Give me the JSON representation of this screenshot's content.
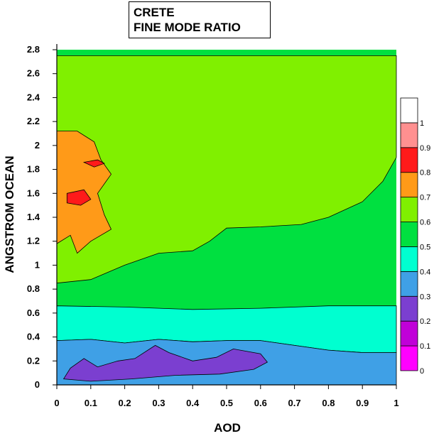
{
  "chart_data": {
    "type": "heatmap",
    "title": [
      "CRETE",
      "FINE MODE RATIO"
    ],
    "xlabel": "AOD",
    "ylabel": "ANGSTROM OCEAN",
    "xlim": [
      0,
      1
    ],
    "ylim": [
      0,
      2.8
    ],
    "x_ticks": [
      "0",
      "0.1",
      "0.2",
      "0.3",
      "0.4",
      "0.5",
      "0.6",
      "0.7",
      "0.8",
      "0.9",
      "1"
    ],
    "y_ticks": [
      "0",
      "0.2",
      "0.4",
      "0.6",
      "0.8",
      "1",
      "1.2",
      "1.4",
      "1.6",
      "1.8",
      "2",
      "2.2",
      "2.4",
      "2.6",
      "2.8"
    ],
    "colorbar": {
      "ticks": [
        "0",
        "0.1",
        "0.2",
        "0.3",
        "0.4",
        "0.5",
        "0.6",
        "0.7",
        "0.8",
        "0.9",
        "1"
      ],
      "levels": [
        {
          "range": [
            0.0,
            0.1
          ],
          "color": "#ff00ff"
        },
        {
          "range": [
            0.1,
            0.2
          ],
          "color": "#c000d8"
        },
        {
          "range": [
            0.2,
            0.3
          ],
          "color": "#7b3fd0"
        },
        {
          "range": [
            0.3,
            0.4
          ],
          "color": "#3fa0e6"
        },
        {
          "range": [
            0.4,
            0.5
          ],
          "color": "#00ffd0"
        },
        {
          "range": [
            0.5,
            0.6
          ],
          "color": "#00e040"
        },
        {
          "range": [
            0.6,
            0.7
          ],
          "color": "#80f000"
        },
        {
          "range": [
            0.7,
            0.8
          ],
          "color": "#ff9a18"
        },
        {
          "range": [
            0.8,
            0.9
          ],
          "color": "#ff1a1a"
        },
        {
          "range": [
            0.9,
            1.0
          ],
          "color": "#ff9090"
        },
        {
          "range": [
            1.0,
            1.1
          ],
          "color": "#ffffff"
        }
      ]
    },
    "regions": [
      {
        "name": "background",
        "level": 0.55,
        "color": "#00e040"
      },
      {
        "name": "upper-large-zone",
        "level": 0.65,
        "color": "#80f000",
        "outline": [
          [
            0.0,
            2.75
          ],
          [
            1.0,
            2.75
          ],
          [
            1.0,
            1.9
          ],
          [
            0.96,
            1.7
          ],
          [
            0.9,
            1.53
          ],
          [
            0.8,
            1.4
          ],
          [
            0.72,
            1.34
          ],
          [
            0.6,
            1.32
          ],
          [
            0.5,
            1.31
          ],
          [
            0.45,
            1.2
          ],
          [
            0.4,
            1.12
          ],
          [
            0.3,
            1.1
          ],
          [
            0.2,
            1.0
          ],
          [
            0.1,
            0.88
          ],
          [
            0.0,
            0.85
          ]
        ]
      },
      {
        "name": "mid-cyan-band",
        "level": 0.45,
        "color": "#00ffd0",
        "outline": [
          [
            0.0,
            0.66
          ],
          [
            0.2,
            0.65
          ],
          [
            0.4,
            0.63
          ],
          [
            0.6,
            0.64
          ],
          [
            0.8,
            0.66
          ],
          [
            1.0,
            0.66
          ],
          [
            1.0,
            0.27
          ],
          [
            0.9,
            0.27
          ],
          [
            0.8,
            0.29
          ],
          [
            0.7,
            0.33
          ],
          [
            0.6,
            0.37
          ],
          [
            0.5,
            0.37
          ],
          [
            0.4,
            0.36
          ],
          [
            0.3,
            0.38
          ],
          [
            0.2,
            0.35
          ],
          [
            0.1,
            0.38
          ],
          [
            0.0,
            0.37
          ]
        ]
      },
      {
        "name": "lower-blue-band",
        "level": 0.35,
        "color": "#3fa0e6",
        "outline": [
          [
            0.0,
            0.37
          ],
          [
            0.1,
            0.38
          ],
          [
            0.2,
            0.35
          ],
          [
            0.3,
            0.38
          ],
          [
            0.4,
            0.36
          ],
          [
            0.5,
            0.37
          ],
          [
            0.6,
            0.37
          ],
          [
            0.7,
            0.33
          ],
          [
            0.8,
            0.29
          ],
          [
            0.9,
            0.27
          ],
          [
            1.0,
            0.27
          ],
          [
            1.0,
            0.0
          ],
          [
            0.0,
            0.0
          ]
        ]
      },
      {
        "name": "purple-bottom-zone",
        "level": 0.25,
        "color": "#7b3fd0",
        "outline": [
          [
            0.02,
            0.05
          ],
          [
            0.04,
            0.14
          ],
          [
            0.08,
            0.22
          ],
          [
            0.12,
            0.15
          ],
          [
            0.18,
            0.2
          ],
          [
            0.23,
            0.22
          ],
          [
            0.29,
            0.33
          ],
          [
            0.33,
            0.27
          ],
          [
            0.4,
            0.2
          ],
          [
            0.47,
            0.23
          ],
          [
            0.52,
            0.3
          ],
          [
            0.6,
            0.26
          ],
          [
            0.62,
            0.19
          ],
          [
            0.58,
            0.13
          ],
          [
            0.48,
            0.09
          ],
          [
            0.35,
            0.08
          ],
          [
            0.22,
            0.05
          ],
          [
            0.1,
            0.03
          ]
        ]
      },
      {
        "name": "orange-left-zone",
        "level": 0.75,
        "color": "#ff9a18",
        "outline": [
          [
            0.0,
            2.12
          ],
          [
            0.06,
            2.12
          ],
          [
            0.11,
            2.03
          ],
          [
            0.13,
            1.88
          ],
          [
            0.16,
            1.76
          ],
          [
            0.12,
            1.6
          ],
          [
            0.14,
            1.42
          ],
          [
            0.16,
            1.3
          ],
          [
            0.1,
            1.2
          ],
          [
            0.06,
            1.1
          ],
          [
            0.04,
            1.25
          ],
          [
            0.0,
            1.18
          ]
        ]
      },
      {
        "name": "red-patch-1",
        "level": 0.85,
        "color": "#ff1a1a",
        "outline": [
          [
            0.03,
            1.6
          ],
          [
            0.08,
            1.63
          ],
          [
            0.1,
            1.55
          ],
          [
            0.07,
            1.5
          ],
          [
            0.03,
            1.52
          ]
        ]
      },
      {
        "name": "red-patch-2",
        "level": 0.85,
        "color": "#ff1a1a",
        "outline": [
          [
            0.08,
            1.86
          ],
          [
            0.12,
            1.88
          ],
          [
            0.14,
            1.85
          ],
          [
            0.11,
            1.82
          ]
        ]
      }
    ]
  }
}
